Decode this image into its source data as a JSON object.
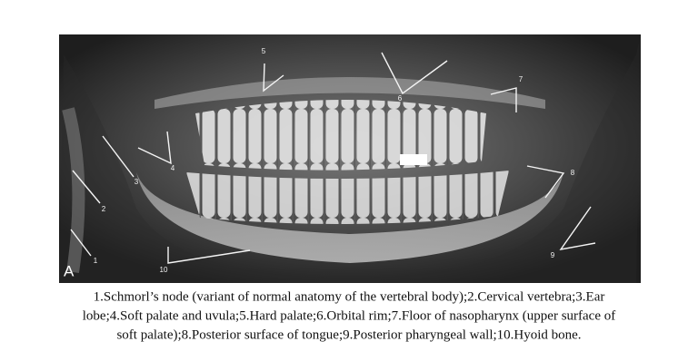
{
  "figure": {
    "panel": "A",
    "labels": [
      "1",
      "2",
      "3",
      "4",
      "5",
      "6",
      "7",
      "8",
      "9",
      "10"
    ],
    "caption": {
      "lines": [
        "1.Schmorl’s node (variant of normal anatomy of the vertebral body);2.Cervical vertebra;3.Ear",
        "lobe;4.Soft palate and uvula;5.Hard palate;6.Orbital rim;7.Floor of nasopharynx (upper surface of",
        "soft palate);8.Posterior surface of tongue;9.Posterior pharyngeal wall;10.Hyoid bone."
      ]
    }
  }
}
